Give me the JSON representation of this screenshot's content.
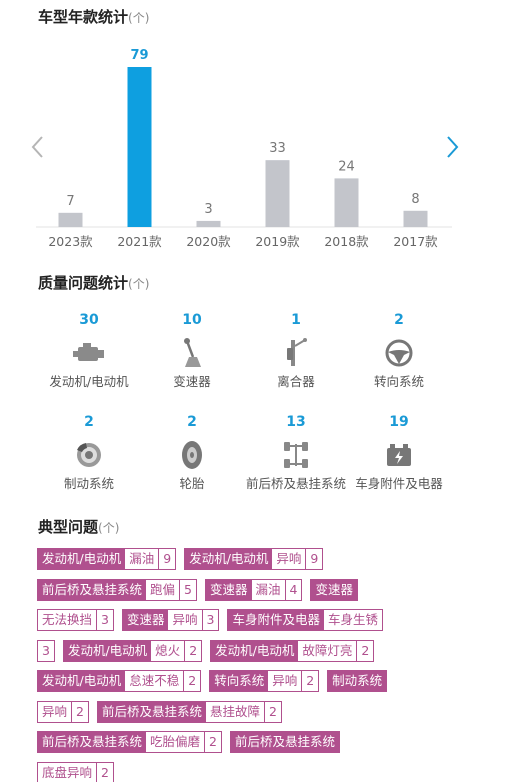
{
  "year_section": {
    "title": "车型年款统计",
    "unit": "(个)"
  },
  "chart_data": {
    "type": "bar",
    "categories": [
      "2023款",
      "2021款",
      "2020款",
      "2019款",
      "2018款",
      "2017款"
    ],
    "values": [
      7,
      79,
      3,
      33,
      24,
      8
    ],
    "highlight_index": 1,
    "colors": {
      "highlight": "#0e9fe0",
      "normal": "#c3c5cb"
    },
    "ylim": [
      0,
      79
    ]
  },
  "quality_section": {
    "title": "质量问题统计",
    "unit": "(个)",
    "items": [
      {
        "count": "30",
        "label": "发动机/电动机",
        "icon": "engine-icon"
      },
      {
        "count": "10",
        "label": "变速器",
        "icon": "gear-shift-icon"
      },
      {
        "count": "1",
        "label": "离合器",
        "icon": "clutch-pedal-icon"
      },
      {
        "count": "2",
        "label": "转向系统",
        "icon": "steering-wheel-icon"
      },
      {
        "count": "2",
        "label": "制动系统",
        "icon": "brake-disc-icon"
      },
      {
        "count": "2",
        "label": "轮胎",
        "icon": "tire-icon"
      },
      {
        "count": "13",
        "label": "前后桥及悬挂系统",
        "icon": "axle-suspension-icon"
      },
      {
        "count": "19",
        "label": "车身附件及电器",
        "icon": "battery-electrical-icon"
      }
    ]
  },
  "typical_section": {
    "title": "典型问题",
    "unit": "(个)",
    "tag_color": "#b0508e",
    "rows": [
      [
        {
          "cat": "发动机/电动机",
          "sub": "漏油",
          "cnt": "9"
        },
        {
          "cat": "发动机/电动机",
          "sub": "异响",
          "cnt": "9"
        }
      ],
      [
        {
          "cat": "前后桥及悬挂系统",
          "sub": "跑偏",
          "cnt": "5"
        },
        {
          "cat": "变速器",
          "sub": "漏油",
          "cnt": "4"
        },
        {
          "cat": "变速器",
          "sub": "",
          "cnt": ""
        }
      ],
      [
        {
          "cat": "",
          "sub": "无法换挡",
          "cnt": "3"
        },
        {
          "cat": "变速器",
          "sub": "异响",
          "cnt": "3"
        },
        {
          "cat": "车身附件及电器",
          "sub": "车身生锈",
          "cnt": ""
        }
      ],
      [
        {
          "cat": "",
          "sub": "",
          "cnt": "3"
        },
        {
          "cat": "发动机/电动机",
          "sub": "熄火",
          "cnt": "2"
        },
        {
          "cat": "发动机/电动机",
          "sub": "故障灯亮",
          "cnt": "2"
        }
      ],
      [
        {
          "cat": "发动机/电动机",
          "sub": "怠速不稳",
          "cnt": "2"
        },
        {
          "cat": "转向系统",
          "sub": "异响",
          "cnt": "2"
        },
        {
          "cat": "制动系统",
          "sub": "",
          "cnt": ""
        }
      ],
      [
        {
          "cat": "",
          "sub": "异响",
          "cnt": "2"
        },
        {
          "cat": "前后桥及悬挂系统",
          "sub": "悬挂故障",
          "cnt": "2"
        }
      ],
      [
        {
          "cat": "前后桥及悬挂系统",
          "sub": "吃胎偏磨",
          "cnt": "2"
        },
        {
          "cat": "前后桥及悬挂系统",
          "sub": "",
          "cnt": ""
        }
      ],
      [
        {
          "cat": "",
          "sub": "底盘异响",
          "cnt": "2"
        }
      ]
    ]
  }
}
